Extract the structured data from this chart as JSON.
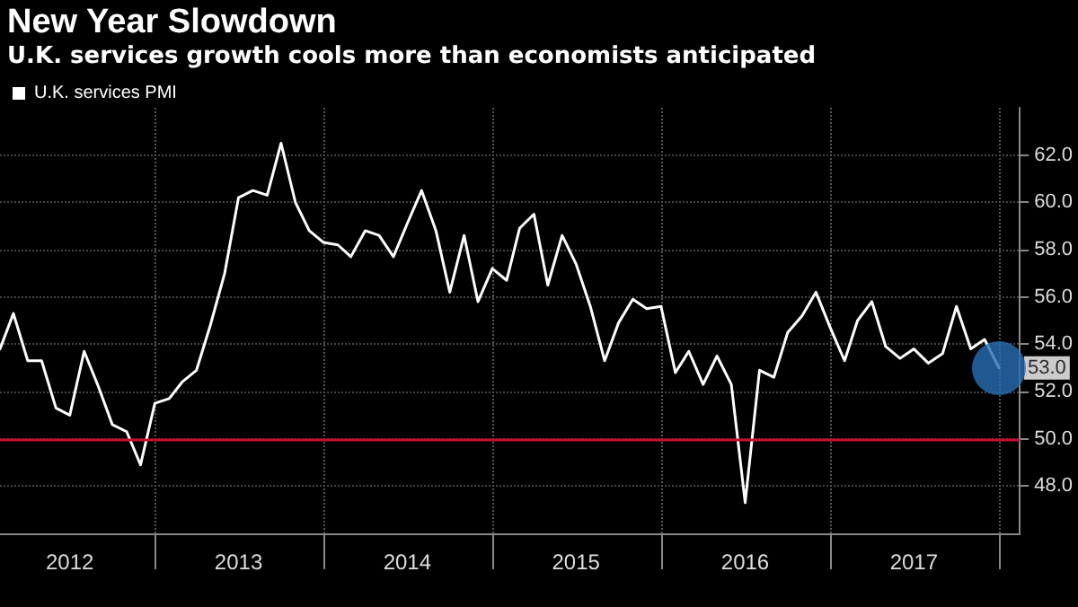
{
  "chart_data": {
    "type": "line",
    "title": "New Year Slowdown",
    "subtitle": "U.K. services growth cools more than economists anticipated",
    "x": [
      "2012-02",
      "2012-03",
      "2012-04",
      "2012-05",
      "2012-06",
      "2012-07",
      "2012-08",
      "2012-09",
      "2012-10",
      "2012-11",
      "2012-12",
      "2013-01",
      "2013-02",
      "2013-03",
      "2013-04",
      "2013-05",
      "2013-06",
      "2013-07",
      "2013-08",
      "2013-09",
      "2013-10",
      "2013-11",
      "2013-12",
      "2014-01",
      "2014-02",
      "2014-03",
      "2014-04",
      "2014-05",
      "2014-06",
      "2014-07",
      "2014-08",
      "2014-09",
      "2014-10",
      "2014-11",
      "2014-12",
      "2015-01",
      "2015-02",
      "2015-03",
      "2015-04",
      "2015-05",
      "2015-06",
      "2015-07",
      "2015-08",
      "2015-09",
      "2015-10",
      "2015-11",
      "2015-12",
      "2016-01",
      "2016-02",
      "2016-03",
      "2016-04",
      "2016-05",
      "2016-06",
      "2016-07",
      "2016-08",
      "2016-09",
      "2016-10",
      "2016-11",
      "2016-12",
      "2017-01",
      "2017-02",
      "2017-03",
      "2017-04",
      "2017-05",
      "2017-06",
      "2017-07",
      "2017-08",
      "2017-09",
      "2017-10",
      "2017-11",
      "2017-12",
      "2018-01"
    ],
    "series": [
      {
        "name": "U.K. services PMI",
        "color": "#ffffff",
        "values": [
          53.8,
          55.3,
          53.3,
          53.3,
          51.3,
          51.0,
          53.7,
          52.2,
          50.6,
          50.3,
          48.9,
          51.5,
          51.7,
          52.4,
          52.9,
          54.8,
          57.0,
          60.2,
          60.5,
          60.3,
          62.5,
          60.0,
          58.8,
          58.3,
          58.2,
          57.7,
          58.8,
          58.6,
          57.7,
          59.1,
          60.5,
          58.8,
          56.2,
          58.6,
          55.8,
          57.2,
          56.7,
          58.9,
          59.5,
          56.5,
          58.6,
          57.4,
          55.6,
          53.3,
          54.9,
          55.9,
          55.5,
          55.6,
          52.8,
          53.7,
          52.3,
          53.5,
          52.3,
          47.3,
          52.9,
          52.6,
          54.5,
          55.2,
          56.2,
          54.7,
          53.3,
          55.0,
          55.8,
          53.9,
          53.4,
          53.8,
          53.2,
          53.6,
          55.6,
          53.8,
          54.2,
          53.0
        ]
      }
    ],
    "xlim": [
      "2012-02-01",
      "2018-02-15"
    ],
    "xticks": [
      {
        "value": "2012-07-01",
        "label": "2012"
      },
      {
        "value": "2013-01-01",
        "label": null
      },
      {
        "value": "2013-07-01",
        "label": "2013"
      },
      {
        "value": "2014-01-01",
        "label": null
      },
      {
        "value": "2014-07-01",
        "label": "2014"
      },
      {
        "value": "2015-01-01",
        "label": null
      },
      {
        "value": "2015-07-01",
        "label": "2015"
      },
      {
        "value": "2016-01-01",
        "label": null
      },
      {
        "value": "2016-07-01",
        "label": "2016"
      },
      {
        "value": "2017-01-01",
        "label": null
      },
      {
        "value": "2017-07-01",
        "label": "2017"
      },
      {
        "value": "2018-01-01",
        "label": null
      }
    ],
    "ylim": [
      46,
      64
    ],
    "yticks": [
      {
        "value": 48,
        "label": "48.0"
      },
      {
        "value": 50,
        "label": "50.0"
      },
      {
        "value": 52,
        "label": "52.0"
      },
      {
        "value": 54,
        "label": "54.0"
      },
      {
        "value": 56,
        "label": "56.0"
      },
      {
        "value": 58,
        "label": "58.0"
      },
      {
        "value": 60,
        "label": "60.0"
      },
      {
        "value": 62,
        "label": "62.0"
      }
    ],
    "ref_lines": [
      {
        "axis": "y",
        "value": 50,
        "color": "#c8102e"
      }
    ],
    "annotations": [
      {
        "text": "53.0",
        "x": "2018-01",
        "y": 53.0
      }
    ],
    "grid": true,
    "legend": "top left",
    "marker": "none",
    "line_style": "solid"
  }
}
